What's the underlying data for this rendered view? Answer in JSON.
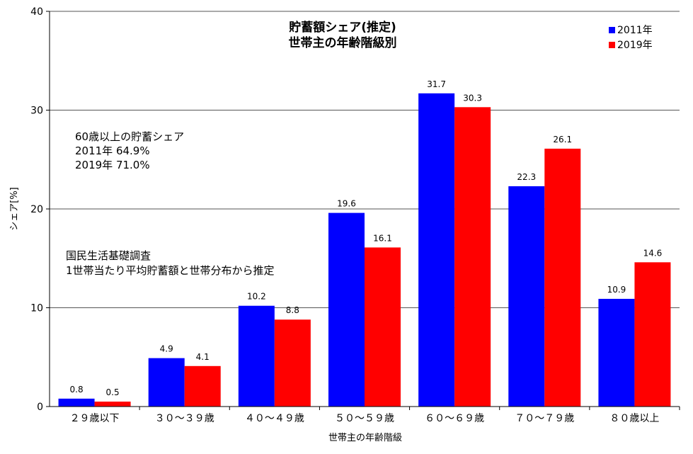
{
  "chart_data": {
    "type": "bar",
    "title": [
      "貯蓄額シェア(推定)",
      "世帯主の年齢階級別"
    ],
    "xlabel": "世帯主の年齢階級",
    "ylabel": "シェア[%]",
    "ylim": [
      0,
      40
    ],
    "yticks": [
      0,
      10,
      20,
      30,
      40
    ],
    "grid": true,
    "legend_position": "top-right",
    "categories": [
      "２９歳以下",
      "３０～３９歳",
      "４０～４９歳",
      "５０～５９歳",
      "６０～６９歳",
      "７０～７９歳",
      "８０歳以上"
    ],
    "series": [
      {
        "name": "2011年",
        "color": "#0000ff",
        "values": [
          0.8,
          4.9,
          10.2,
          19.6,
          31.7,
          22.3,
          10.9
        ]
      },
      {
        "name": "2019年",
        "color": "#ff0000",
        "values": [
          0.5,
          4.1,
          8.8,
          16.1,
          30.3,
          26.1,
          14.6
        ]
      }
    ],
    "annotations": [
      [
        "60歳以上の貯蓄シェア",
        "2011年 64.9%",
        "2019年 71.0%"
      ],
      [
        "国民生活基礎調査",
        "1世帯当たり平均貯蓄額と世帯分布から推定"
      ]
    ]
  }
}
